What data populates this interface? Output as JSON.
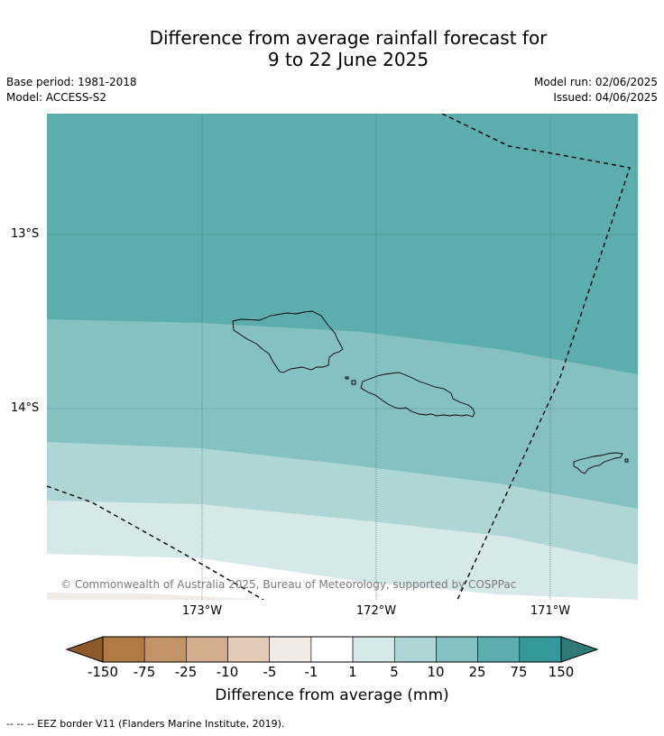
{
  "title_line1": "Difference from average rainfall forecast for",
  "title_line2": "9 to 22 June 2025",
  "meta": {
    "base_period": "Base period: 1981-2018",
    "model": "Model: ACCESS-S2",
    "model_run": "Model run: 02/06/2025",
    "issued": "Issued: 04/06/2025"
  },
  "map": {
    "lat_labels": [
      "13°S",
      "14°S"
    ],
    "lon_labels": [
      "173°W",
      "172°W",
      "171°W"
    ],
    "copyright": "© Commonwealth of Australia 2025, Bureau of Meteorology, supported by COSPPac"
  },
  "colorbar": {
    "ticks": [
      "-150",
      "-75",
      "-25",
      "-10",
      "-5",
      "-1",
      "1",
      "5",
      "10",
      "25",
      "75",
      "150"
    ],
    "colors": [
      "#8f5a2a",
      "#b07a45",
      "#c39368",
      "#d3ae8e",
      "#e3cbb9",
      "#f1ebe6",
      "#ffffff",
      "#d6e9e8",
      "#aed6d5",
      "#86c1c1",
      "#5caeae",
      "#35999a",
      "#2d7a78"
    ],
    "label": "Difference from average (mm)"
  },
  "footer": "-- -- -- EEZ border V11 (Flanders Marine Institute, 2019)."
}
